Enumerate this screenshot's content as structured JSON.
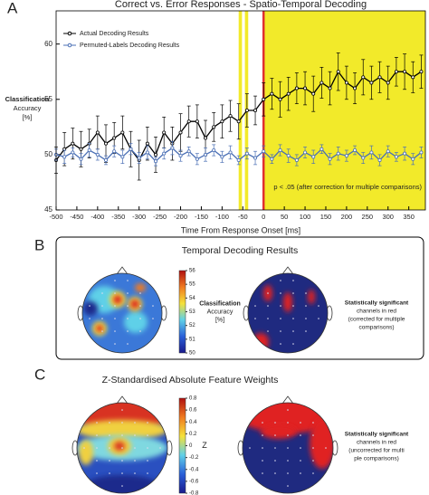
{
  "chart_data": [
    {
      "type": "line",
      "panel": "A",
      "title": "Correct vs. Error Responses - Spatio-Temporal Decoding",
      "x_label": "Time From Response Onset [ms]",
      "y_label_lines": [
        "Classification",
        "Accuracy",
        "[%]"
      ],
      "x": [
        -500,
        -480,
        -460,
        -440,
        -420,
        -400,
        -380,
        -360,
        -340,
        -320,
        -300,
        -280,
        -260,
        -240,
        -220,
        -200,
        -180,
        -160,
        -140,
        -120,
        -100,
        -80,
        -60,
        -40,
        -20,
        0,
        20,
        40,
        60,
        80,
        100,
        120,
        140,
        160,
        180,
        200,
        220,
        240,
        260,
        280,
        300,
        320,
        340,
        360,
        380
      ],
      "series": [
        {
          "name": "Actual Decoding Results",
          "color": "#000000",
          "values": [
            49.5,
            50.5,
            51,
            50.5,
            51,
            52,
            51,
            51.5,
            52,
            50.5,
            49.5,
            51,
            50,
            52,
            51,
            52,
            53,
            53,
            51.5,
            52.5,
            53,
            53.5,
            53,
            54,
            54,
            55,
            55.5,
            55,
            55.5,
            56,
            56,
            55.5,
            56.5,
            56,
            57.5,
            56.5,
            56,
            57,
            56.5,
            57,
            56.5,
            57.5,
            57.5,
            57,
            57.5
          ],
          "errors": [
            1.2,
            1.5,
            1.4,
            1.6,
            1.3,
            1.5,
            1.7,
            1.4,
            1.5,
            1.6,
            1.8,
            1.5,
            1.6,
            1.4,
            1.5,
            1.7,
            1.4,
            1.5,
            1.6,
            1.3,
            1.5,
            1.4,
            1.6,
            1.5,
            1.3,
            1.5,
            1.4,
            1.6,
            1.5,
            1.4,
            1.5,
            1.6,
            1.4,
            1.5,
            1.7,
            1.5,
            1.4,
            1.6,
            1.5,
            1.4,
            1.5,
            1.3,
            1.6,
            1.4,
            1.5
          ]
        },
        {
          "name": "Permuted-Labels Decoding Results",
          "color": "#4a6fb5",
          "values": [
            50,
            49.8,
            50.2,
            49.6,
            50.4,
            50,
            49.5,
            50.3,
            49.8,
            50.5,
            49.7,
            50.2,
            49.4,
            50.1,
            50.6,
            49.9,
            50.3,
            49.6,
            50,
            50.4,
            49.8,
            50.2,
            49.5,
            50.1,
            49.7,
            50.3,
            49.6,
            50.4,
            49.9,
            49.5,
            50.2,
            49.8,
            50.5,
            49.6,
            50.1,
            49.9,
            50.4,
            49.7,
            50.2,
            49.5,
            50.3,
            49.8,
            50.1,
            49.6,
            50.2
          ],
          "errors": [
            0.5,
            0.6,
            0.4,
            0.5,
            0.6,
            0.5,
            0.4,
            0.5,
            0.6,
            0.5,
            0.5,
            0.6,
            0.4,
            0.5,
            0.6,
            0.5,
            0.4,
            0.5,
            0.6,
            0.5,
            0.5,
            0.6,
            0.4,
            0.5,
            0.6,
            0.5,
            0.4,
            0.5,
            0.6,
            0.5,
            0.5,
            0.6,
            0.4,
            0.5,
            0.6,
            0.5,
            0.4,
            0.5,
            0.6,
            0.5,
            0.5,
            0.4,
            0.6,
            0.5,
            0.5
          ]
        }
      ],
      "shaded": [
        {
          "start": -60,
          "end": -52
        },
        {
          "start": -45,
          "end": -37
        },
        {
          "start": 0,
          "end": 390
        }
      ],
      "shade_color": "#f2ea2a",
      "vline": 0,
      "vline_color": "#e03030",
      "annotation": "p < .05 (after correction for multiple comparisons)",
      "xlim": [
        -500,
        390
      ],
      "ylim": [
        45,
        63
      ],
      "xticks": [
        -500,
        -450,
        -400,
        -350,
        -300,
        -250,
        -200,
        -150,
        -100,
        -50,
        0,
        50,
        100,
        150,
        200,
        250,
        300,
        350
      ],
      "yticks": [
        45,
        50,
        55,
        60
      ],
      "legend": "upper left"
    },
    {
      "type": "topomap",
      "panel": "B",
      "title": "Temporal Decoding Results",
      "colorbar_lim": [
        50,
        56
      ],
      "colorbar_ticks": [
        50,
        51,
        52,
        53,
        54,
        55,
        56
      ],
      "colorbar_label_lines": [
        "Classification",
        "Accuracy",
        "[%]"
      ],
      "note_lines": [
        "Statistically significant",
        "channels in red",
        "(corrected for multiple",
        "comparisons)"
      ]
    },
    {
      "type": "topomap",
      "panel": "C",
      "title": "Z-Standardised Absolute Feature Weights",
      "colorbar_lim": [
        -0.8,
        0.8
      ],
      "colorbar_ticks": [
        -0.8,
        -0.6,
        -0.4,
        -0.2,
        0,
        0.2,
        0.4,
        0.6,
        0.8
      ],
      "colorbar_label_lines": [
        "Z"
      ],
      "note_lines": [
        "Statistically significant",
        "channels in red",
        "(uncorrected for multi",
        "ple comparisons)"
      ]
    }
  ]
}
